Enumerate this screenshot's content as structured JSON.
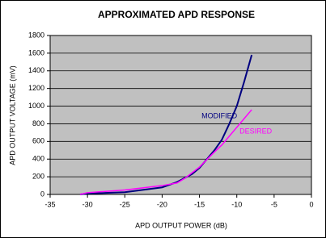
{
  "chart_data": {
    "type": "line",
    "title": "APPROXIMATED APD RESPONSE",
    "x_label": "APD OUTPUT POWER (dB)",
    "y_label": "APD OUTPUT VOLTAGE (mV)",
    "series": [
      {
        "name": "MODIFIED",
        "color": "#000080",
        "x": [
          -31,
          -30,
          -25,
          -20,
          -18,
          -16,
          -15,
          -14,
          -13,
          -12,
          -11,
          -10,
          -9,
          -8
        ],
        "values": [
          0,
          10,
          25,
          80,
          140,
          230,
          300,
          400,
          500,
          620,
          800,
          1000,
          1280,
          1580
        ]
      },
      {
        "name": "DESIRED",
        "color": "#ff00ff",
        "x": [
          -31,
          -30,
          -25,
          -20,
          -18,
          -17,
          -15,
          -13,
          -12,
          -11,
          -10,
          -9,
          -8
        ],
        "values": [
          0,
          20,
          50,
          100,
          130,
          180,
          310,
          480,
          560,
          660,
          760,
          860,
          960
        ]
      }
    ],
    "xlim": [
      -35,
      0
    ],
    "xticks": [
      -35,
      -30,
      -25,
      -20,
      -15,
      -10,
      -5,
      0
    ],
    "ylim": [
      0,
      1800
    ],
    "yticks": [
      0,
      200,
      400,
      600,
      800,
      1000,
      1200,
      1400,
      1600,
      1800
    ],
    "grid": true,
    "background": "#c0c0c0"
  }
}
